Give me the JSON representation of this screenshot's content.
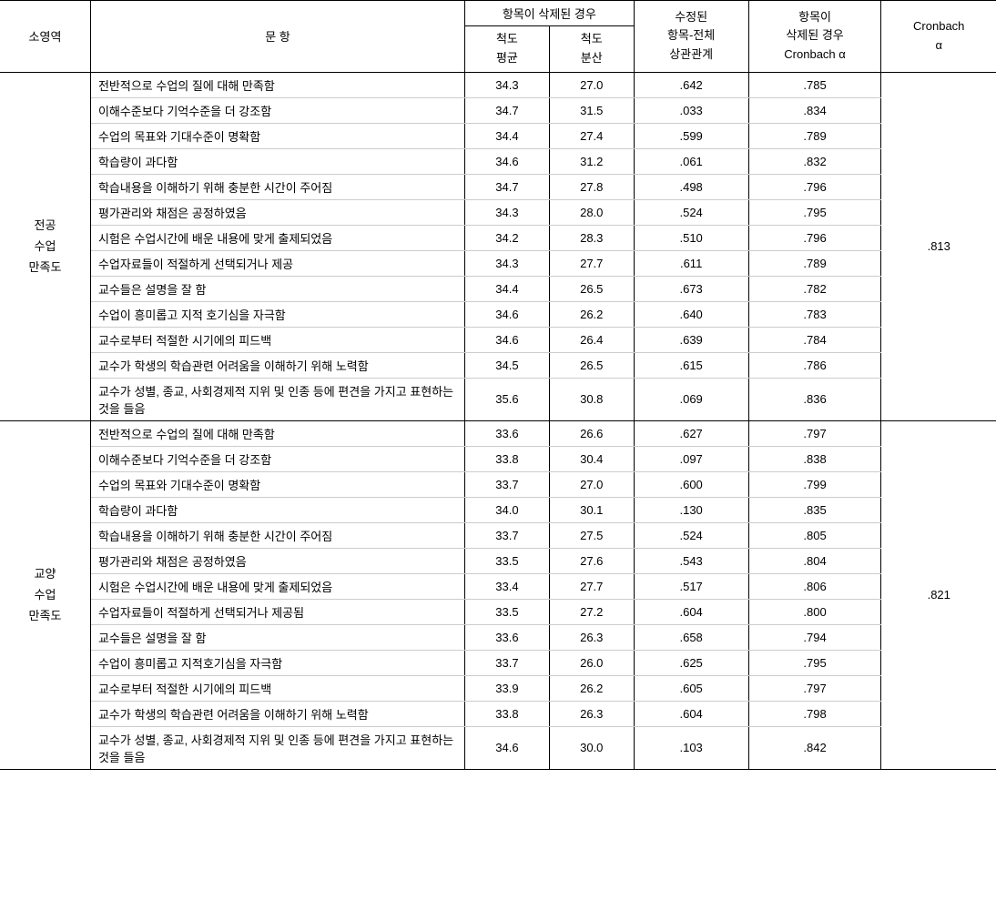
{
  "headers": {
    "category": "소영역",
    "item": "문 항",
    "deleted": "항목이 삭제된 경우",
    "mean": "척도\n평균",
    "variance": "척도\n분산",
    "corr": "수정된\n항목-전체\n상관관계",
    "deleted_alpha": "항목이\n삭제된 경우\nCronbach α",
    "alpha": "Cronbach\nα"
  },
  "sections": [
    {
      "category": "전공\n수업\n만족도",
      "alpha": ".813",
      "rows": [
        {
          "item": "전반적으로 수업의 질에 대해 만족함",
          "mean": "34.3",
          "var": "27.0",
          "corr": ".642",
          "del": ".785"
        },
        {
          "item": "이해수준보다 기억수준을 더 강조함",
          "mean": "34.7",
          "var": "31.5",
          "corr": ".033",
          "del": ".834"
        },
        {
          "item": "수업의 목표와 기대수준이 명확함",
          "mean": "34.4",
          "var": "27.4",
          "corr": ".599",
          "del": ".789"
        },
        {
          "item": "학습량이 과다함",
          "mean": "34.6",
          "var": "31.2",
          "corr": ".061",
          "del": ".832"
        },
        {
          "item": "학습내용을 이해하기 위해 충분한 시간이 주어짐",
          "mean": "34.7",
          "var": "27.8",
          "corr": ".498",
          "del": ".796"
        },
        {
          "item": "평가관리와 채점은 공정하였음",
          "mean": "34.3",
          "var": "28.0",
          "corr": ".524",
          "del": ".795"
        },
        {
          "item": "시험은 수업시간에 배운 내용에 맞게 출제되었음",
          "mean": "34.2",
          "var": "28.3",
          "corr": ".510",
          "del": ".796"
        },
        {
          "item": "수업자료들이 적절하게 선택되거나 제공",
          "mean": "34.3",
          "var": "27.7",
          "corr": ".611",
          "del": ".789"
        },
        {
          "item": "교수들은 설명을 잘 함",
          "mean": "34.4",
          "var": "26.5",
          "corr": ".673",
          "del": ".782"
        },
        {
          "item": "수업이 흥미롭고 지적 호기심을 자극함",
          "mean": "34.6",
          "var": "26.2",
          "corr": ".640",
          "del": ".783"
        },
        {
          "item": "교수로부터 적절한 시기에의 피드백",
          "mean": "34.6",
          "var": "26.4",
          "corr": ".639",
          "del": ".784"
        },
        {
          "item": "교수가 학생의 학습관련 어려움을 이해하기 위해 노력함",
          "mean": "34.5",
          "var": "26.5",
          "corr": ".615",
          "del": ".786"
        },
        {
          "item": "교수가 성별, 종교, 사회경제적 지위 및 인종 등에 편견을 가지고 표현하는 것을 들음",
          "mean": "35.6",
          "var": "30.8",
          "corr": ".069",
          "del": ".836"
        }
      ]
    },
    {
      "category": "교양\n수업\n만족도",
      "alpha": ".821",
      "rows": [
        {
          "item": "전반적으로 수업의 질에 대해 만족함",
          "mean": "33.6",
          "var": "26.6",
          "corr": ".627",
          "del": ".797"
        },
        {
          "item": "이해수준보다 기억수준을 더 강조함",
          "mean": "33.8",
          "var": "30.4",
          "corr": ".097",
          "del": ".838"
        },
        {
          "item": "수업의 목표와 기대수준이 명확함",
          "mean": "33.7",
          "var": "27.0",
          "corr": ".600",
          "del": ".799"
        },
        {
          "item": "학습량이 과다함",
          "mean": "34.0",
          "var": "30.1",
          "corr": ".130",
          "del": ".835"
        },
        {
          "item": "학습내용을 이해하기 위해 충분한 시간이 주어짐",
          "mean": "33.7",
          "var": "27.5",
          "corr": ".524",
          "del": ".805"
        },
        {
          "item": "평가관리와 채점은 공정하였음",
          "mean": "33.5",
          "var": "27.6",
          "corr": ".543",
          "del": ".804"
        },
        {
          "item": "시험은 수업시간에 배운 내용에 맞게 출제되었음",
          "mean": "33.4",
          "var": "27.7",
          "corr": ".517",
          "del": ".806"
        },
        {
          "item": "수업자료들이 적절하게 선택되거나 제공됨",
          "mean": "33.5",
          "var": "27.2",
          "corr": ".604",
          "del": ".800"
        },
        {
          "item": "교수들은 설명을 잘 함",
          "mean": "33.6",
          "var": "26.3",
          "corr": ".658",
          "del": ".794"
        },
        {
          "item": "수업이 흥미롭고 지적호기심을 자극함",
          "mean": "33.7",
          "var": "26.0",
          "corr": ".625",
          "del": ".795"
        },
        {
          "item": "교수로부터 적절한 시기에의 피드백",
          "mean": "33.9",
          "var": "26.2",
          "corr": ".605",
          "del": ".797"
        },
        {
          "item": "교수가 학생의 학습관련 어려움을 이해하기 위해 노력함",
          "mean": "33.8",
          "var": "26.3",
          "corr": ".604",
          "del": ".798"
        },
        {
          "item": "교수가 성별, 종교, 사회경제적 지위 및 인종 등에 편견을 가지고 표현하는 것을 들음",
          "mean": "34.6",
          "var": "30.0",
          "corr": ".103",
          "del": ".842"
        }
      ]
    }
  ]
}
